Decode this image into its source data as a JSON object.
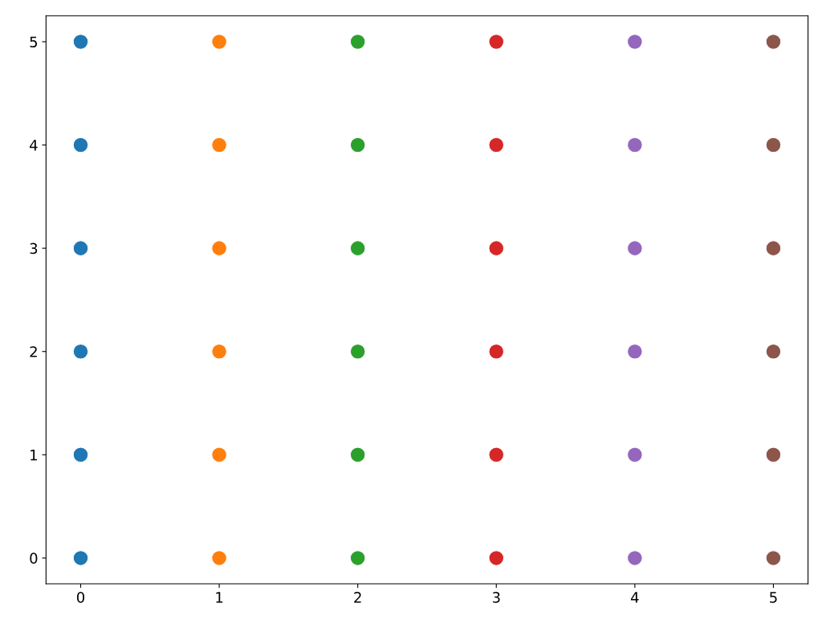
{
  "chart_data": {
    "type": "scatter",
    "series": [
      {
        "color": "#1f77b4",
        "x": [
          0,
          0,
          0,
          0,
          0,
          0
        ],
        "values": [
          0,
          1,
          2,
          3,
          4,
          5
        ]
      },
      {
        "color": "#ff7f0e",
        "x": [
          1,
          1,
          1,
          1,
          1,
          1
        ],
        "values": [
          0,
          1,
          2,
          3,
          4,
          5
        ]
      },
      {
        "color": "#2ca02c",
        "x": [
          2,
          2,
          2,
          2,
          2,
          2
        ],
        "values": [
          0,
          1,
          2,
          3,
          4,
          5
        ]
      },
      {
        "color": "#d62728",
        "x": [
          3,
          3,
          3,
          3,
          3,
          3
        ],
        "values": [
          0,
          1,
          2,
          3,
          4,
          5
        ]
      },
      {
        "color": "#9467bd",
        "x": [
          4,
          4,
          4,
          4,
          4,
          4
        ],
        "values": [
          0,
          1,
          2,
          3,
          4,
          5
        ]
      },
      {
        "color": "#8c564b",
        "x": [
          5,
          5,
          5,
          5,
          5,
          5
        ],
        "values": [
          0,
          1,
          2,
          3,
          4,
          5
        ]
      }
    ],
    "xlim": [
      -0.25,
      5.25
    ],
    "ylim": [
      -0.25,
      5.25
    ],
    "xticks": [
      0,
      1,
      2,
      3,
      4,
      5
    ],
    "yticks": [
      0,
      1,
      2,
      3,
      4,
      5
    ],
    "grid": false,
    "legend": false,
    "marker": "circle"
  }
}
